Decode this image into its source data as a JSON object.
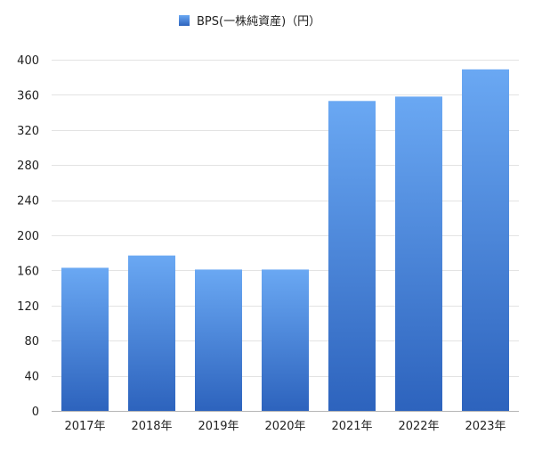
{
  "chart_data": {
    "type": "bar",
    "categories": [
      "2017年",
      "2018年",
      "2019年",
      "2020年",
      "2021年",
      "2022年",
      "2023年"
    ],
    "series": [
      {
        "name": "BPS(一株純資産)（円）",
        "values": [
          163,
          177,
          161,
          161,
          353,
          358,
          389
        ]
      }
    ],
    "ylim": [
      0,
      400
    ],
    "yticks": [
      0,
      40,
      80,
      120,
      160,
      200,
      240,
      280,
      320,
      360,
      400
    ],
    "grid": true,
    "legend_position": "top-center",
    "bar_color_top": "#6aa8f3",
    "bar_color_bottom": "#2d63bd"
  }
}
